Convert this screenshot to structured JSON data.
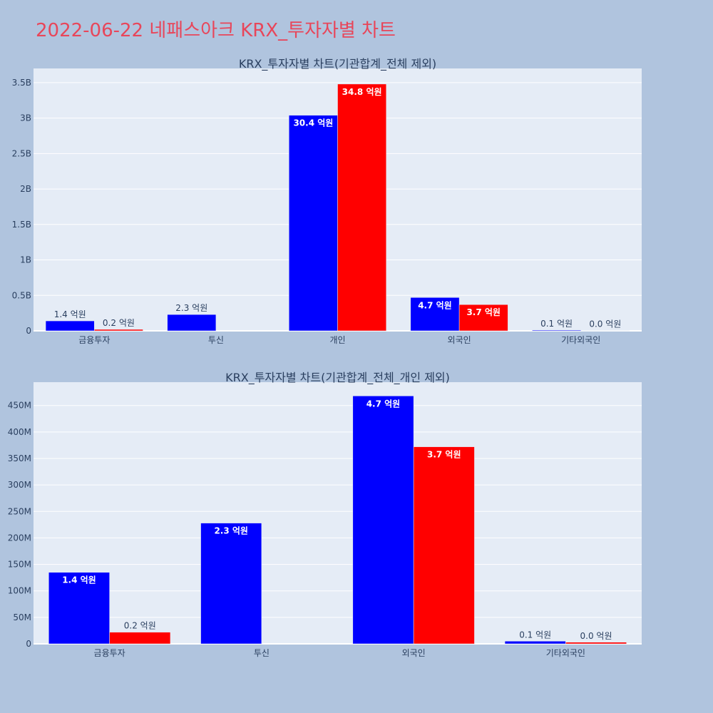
{
  "title": "2022-06-22 네패스아크 KRX_투자자별 차트",
  "colors": {
    "buy": "#0000ff",
    "sell": "#ff0000",
    "title": "#e8465a",
    "plot_bg": "#e5ecf6",
    "page_bg": "#b0c4de"
  },
  "chart_data": [
    {
      "type": "bar",
      "title": "KRX_투자자별 차트(기관합계_전체 제외)",
      "categories": [
        "금융투자",
        "투신",
        "개인",
        "외국인",
        "기타외국인"
      ],
      "series": [
        {
          "values": [
            140000000,
            230000000,
            3040000000,
            470000000,
            10000000
          ],
          "labels": [
            "1.4 억원",
            "2.3 억원",
            "30.4 억원",
            "4.7 억원",
            "0.1 억원"
          ]
        },
        {
          "values": [
            20000000,
            0,
            3480000000,
            370000000,
            3000000
          ],
          "labels": [
            "0.2 억원",
            "",
            "34.8 억원",
            "3.7 억원",
            "0.0 억원"
          ]
        }
      ],
      "yticks": [
        0,
        500000000,
        1000000000,
        1500000000,
        2000000000,
        2500000000,
        3000000000,
        3500000000
      ],
      "ytick_labels": [
        "0",
        "0.5B",
        "1B",
        "1.5B",
        "2B",
        "2.5B",
        "3B",
        "3.5B"
      ],
      "ylim": [
        0,
        3700000000
      ]
    },
    {
      "type": "bar",
      "title": "KRX_투자자별 차트(기관합계_전체_개인 제외)",
      "categories": [
        "금융투자",
        "투신",
        "외국인",
        "기타외국인"
      ],
      "series": [
        {
          "values": [
            135000000,
            228000000,
            468000000,
            5000000
          ],
          "labels": [
            "1.4 억원",
            "2.3 억원",
            "4.7 억원",
            "0.1 억원"
          ]
        },
        {
          "values": [
            22000000,
            0,
            372000000,
            3000000
          ],
          "labels": [
            "0.2 억원",
            "",
            "3.7 억원",
            "0.0 억원"
          ]
        }
      ],
      "yticks": [
        0,
        50000000,
        100000000,
        150000000,
        200000000,
        250000000,
        300000000,
        350000000,
        400000000,
        450000000
      ],
      "ytick_labels": [
        "0",
        "50M",
        "100M",
        "150M",
        "200M",
        "250M",
        "300M",
        "350M",
        "400M",
        "450M"
      ],
      "ylim": [
        0,
        494000000
      ]
    }
  ]
}
